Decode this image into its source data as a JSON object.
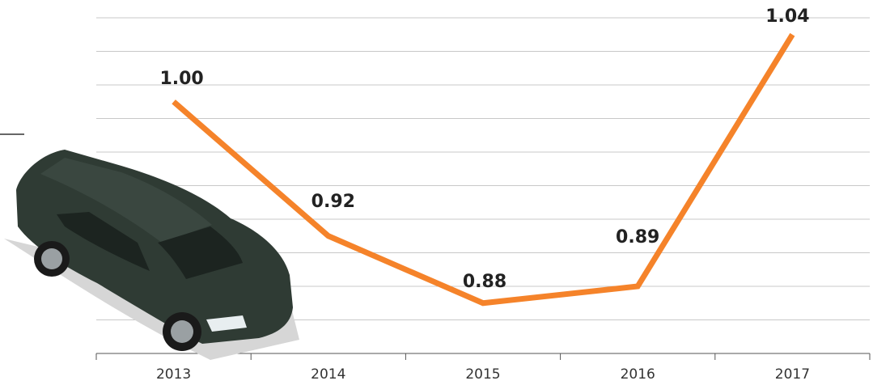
{
  "chart_data": {
    "type": "line",
    "categories": [
      "2013",
      "2014",
      "2015",
      "2016",
      "2017"
    ],
    "series": [
      {
        "color": "#f5832a",
        "values": [
          1.0,
          0.92,
          0.88,
          0.89,
          1.04
        ],
        "value_labels": [
          "1.00",
          "0.92",
          "0.88",
          "0.89",
          "1.04"
        ]
      }
    ],
    "ylim": [
      0.85,
      1.05
    ],
    "yticks": [
      0.85,
      0.87,
      0.89,
      0.91,
      0.93,
      0.95,
      0.97,
      0.99,
      1.01,
      1.03,
      1.05
    ],
    "grid": true
  }
}
